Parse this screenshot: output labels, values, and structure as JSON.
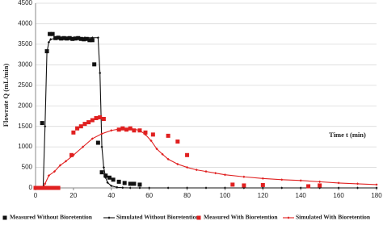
{
  "chart_data": {
    "type": "scatter-line",
    "x_label": "Time t (min)",
    "y_label": "Flowrate Q (mL/min)",
    "xlim": [
      0,
      180
    ],
    "xticks": [
      0,
      20,
      40,
      60,
      80,
      100,
      120,
      140,
      160,
      180
    ],
    "ylim": [
      0,
      4500
    ],
    "yticks": [
      0,
      500,
      1000,
      1500,
      2000,
      2500,
      3000,
      3500,
      4000,
      4500
    ],
    "grid": true,
    "series": [
      {
        "name": "Measured Without Bioretention",
        "color": "#111111",
        "style": "markers",
        "x": [
          0,
          2,
          3.5,
          6,
          7.5,
          9,
          10.5,
          12,
          13.5,
          15,
          16.5,
          18,
          19.5,
          21,
          22.5,
          24,
          25.5,
          27,
          28.5,
          30,
          31,
          33,
          35,
          37,
          39,
          41,
          44,
          47,
          50,
          52,
          55
        ],
        "values": [
          0,
          0,
          1580,
          3330,
          3750,
          3750,
          3650,
          3660,
          3640,
          3650,
          3640,
          3650,
          3630,
          3640,
          3650,
          3630,
          3620,
          3630,
          3600,
          3600,
          3010,
          1100,
          380,
          300,
          250,
          200,
          150,
          120,
          100,
          100,
          80
        ]
      },
      {
        "name": "Simulated Without Bioretention",
        "color": "#111111",
        "style": "line-markers",
        "x": [
          0,
          3,
          4,
          5,
          6,
          7,
          8,
          10,
          14,
          18,
          22,
          26,
          30,
          33,
          34,
          35,
          36,
          37,
          38,
          40,
          43,
          46,
          50,
          55,
          60,
          70,
          80,
          90,
          100,
          110,
          120,
          130,
          140,
          150,
          160,
          170,
          180
        ],
        "values": [
          0,
          0,
          0,
          1500,
          3300,
          3550,
          3620,
          3640,
          3650,
          3650,
          3650,
          3660,
          3660,
          3660,
          2800,
          1000,
          500,
          250,
          130,
          50,
          15,
          5,
          0,
          0,
          0,
          0,
          0,
          0,
          0,
          0,
          0,
          0,
          0,
          0,
          0,
          0,
          0
        ]
      },
      {
        "name": "Measured With Bioretention",
        "color": "#e02020",
        "style": "markers",
        "x": [
          0,
          2,
          4,
          6,
          8,
          10,
          12,
          19,
          20,
          22,
          24,
          26,
          28,
          30,
          32,
          34,
          36,
          44,
          46,
          48,
          50,
          52,
          55,
          58,
          62,
          70,
          75,
          80,
          104,
          110,
          120,
          144,
          150
        ],
        "values": [
          0,
          0,
          0,
          0,
          0,
          0,
          0,
          800,
          1350,
          1450,
          1500,
          1560,
          1600,
          1650,
          1700,
          1720,
          1680,
          1420,
          1450,
          1420,
          1450,
          1400,
          1400,
          1350,
          1300,
          1270,
          1130,
          800,
          80,
          60,
          70,
          40,
          60
        ]
      },
      {
        "name": "Simulated With Bioretention",
        "color": "#e02020",
        "style": "line-markers",
        "x": [
          0,
          4,
          5,
          7,
          10,
          13,
          16,
          20,
          25,
          30,
          35,
          40,
          45,
          50,
          55,
          58,
          61,
          64,
          67,
          70,
          75,
          80,
          85,
          90,
          95,
          100,
          110,
          120,
          130,
          140,
          150,
          160,
          170,
          180
        ],
        "values": [
          0,
          0,
          100,
          300,
          400,
          550,
          650,
          800,
          1000,
          1200,
          1320,
          1400,
          1440,
          1450,
          1400,
          1300,
          1150,
          950,
          820,
          700,
          580,
          500,
          440,
          400,
          360,
          320,
          270,
          230,
          200,
          180,
          150,
          120,
          100,
          80
        ]
      }
    ],
    "legend": "bottom"
  }
}
